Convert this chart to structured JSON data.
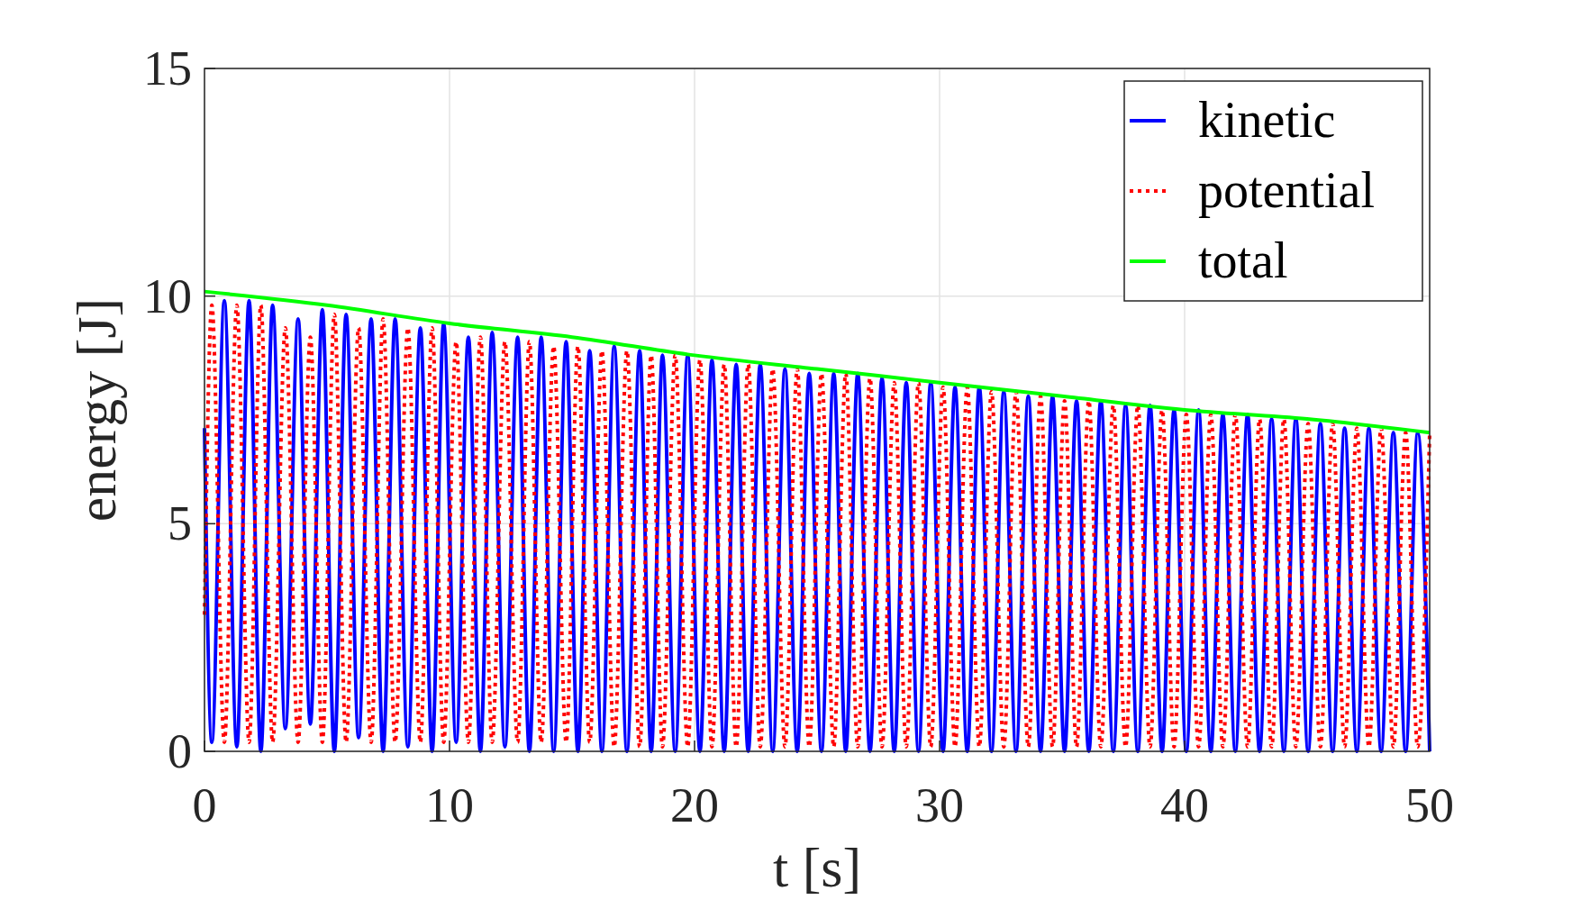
{
  "chart_data": {
    "type": "line",
    "xlabel": "t [s]",
    "ylabel": "energy [J]",
    "xlim": [
      0,
      50
    ],
    "ylim": [
      0,
      15
    ],
    "xticks": [
      0,
      10,
      20,
      30,
      40,
      50
    ],
    "yticks": [
      0,
      5,
      10,
      15
    ],
    "grid": true,
    "legend": "top right",
    "series": [
      {
        "name": "kinetic",
        "color": "#0000ff",
        "line_style": "solid",
        "x": [
          0,
          0.3,
          0.81,
          1.32,
          1.82,
          2.3,
          2.78,
          3.3,
          3.82,
          4.32,
          4.81,
          5.3,
          5.78,
          6.29,
          6.8,
          7.29,
          7.78,
          8.3,
          8.81,
          9.29,
          9.76,
          10.27,
          10.77,
          11.26,
          11.74,
          12.26,
          12.78,
          13.26,
          13.74,
          14.25,
          14.76,
          15.24,
          15.72,
          16.22,
          16.72,
          17.24,
          17.76,
          18.23,
          18.69,
          19.21,
          19.72,
          20.22,
          20.71,
          21.21,
          21.7,
          22.19,
          22.68,
          23.19,
          23.69,
          24.19,
          24.68,
          25.18,
          25.68,
          26.17,
          26.66,
          27.16,
          27.65,
          28.15,
          28.64,
          29.14,
          29.64,
          30.14,
          30.63,
          31.13,
          31.62,
          32.12,
          32.62,
          33.12,
          33.62,
          34.12,
          34.61,
          35.1,
          35.59,
          36.09,
          36.58,
          37.09,
          37.59,
          38.09,
          38.59,
          39.08,
          39.57,
          40.07,
          40.57,
          41.07,
          41.56,
          42.07,
          42.57,
          43.06,
          43.55,
          44.05,
          44.54,
          45.04,
          45.54,
          46.04,
          46.53,
          47.03,
          47.52,
          48.02,
          48.52,
          49.02,
          49.51,
          50
        ],
        "values": [
          7.1,
          0.2,
          9.9,
          0.1,
          9.9,
          0,
          9.8,
          0.5,
          9.5,
          0.6,
          9.7,
          0,
          9.6,
          0.3,
          9.5,
          0,
          9.5,
          0.1,
          9.3,
          0,
          9.4,
          0.2,
          9.1,
          0,
          9.2,
          0.1,
          9.1,
          0,
          9.1,
          0,
          9.0,
          0,
          8.8,
          0,
          8.9,
          0,
          8.8,
          0,
          8.7,
          0,
          8.7,
          0,
          8.6,
          0,
          8.5,
          0,
          8.5,
          0,
          8.4,
          0,
          8.3,
          0,
          8.3,
          0,
          8.3,
          0,
          8.2,
          0,
          8.1,
          0,
          8.1,
          0,
          8.0,
          0,
          8.0,
          0,
          7.9,
          0,
          7.8,
          0,
          7.8,
          0,
          7.7,
          0,
          7.7,
          0,
          7.6,
          0,
          7.6,
          0,
          7.5,
          0,
          7.5,
          0,
          7.4,
          0,
          7.4,
          0,
          7.3,
          0,
          7.3,
          0,
          7.2,
          0,
          7.1,
          0,
          7.1,
          0,
          7.0,
          0,
          7.0,
          0
        ]
      },
      {
        "name": "potential",
        "color": "#ff0000",
        "line_style": "dotted",
        "x": [
          0,
          0.3,
          0.81,
          1.32,
          1.82,
          2.3,
          2.78,
          3.3,
          3.82,
          4.32,
          4.81,
          5.3,
          5.78,
          6.29,
          6.8,
          7.29,
          7.78,
          8.3,
          8.81,
          9.29,
          9.76,
          10.27,
          10.77,
          11.26,
          11.74,
          12.26,
          12.78,
          13.26,
          13.74,
          14.25,
          14.76,
          15.24,
          15.72,
          16.22,
          16.72,
          17.24,
          17.76,
          18.23,
          18.69,
          19.21,
          19.72,
          20.22,
          20.71,
          21.21,
          21.7,
          22.19,
          22.68,
          23.19,
          23.69,
          24.19,
          24.68,
          25.18,
          25.68,
          26.17,
          26.66,
          27.16,
          27.65,
          28.15,
          28.64,
          29.14,
          29.64,
          30.14,
          30.63,
          31.13,
          31.62,
          32.12,
          32.62,
          33.12,
          33.62,
          34.12,
          34.61,
          35.1,
          35.59,
          36.09,
          36.58,
          37.09,
          37.59,
          38.09,
          38.59,
          39.08,
          39.57,
          40.07,
          40.57,
          41.07,
          41.56,
          42.07,
          42.57,
          43.06,
          43.55,
          44.05,
          44.54,
          45.04,
          45.54,
          46.04,
          46.53,
          47.03,
          47.52,
          48.02,
          48.52,
          49.02,
          49.51,
          50
        ],
        "values": [
          3.0,
          9.8,
          0.2,
          9.8,
          0.2,
          9.8,
          0.2,
          9.3,
          0.2,
          9.1,
          0.2,
          9.6,
          0.2,
          9.3,
          0.2,
          9.5,
          0.2,
          9.3,
          0.2,
          9.3,
          0.2,
          9.0,
          0.2,
          9.1,
          0.2,
          9.0,
          0.2,
          9.0,
          0.2,
          8.9,
          0.2,
          8.9,
          0.2,
          8.8,
          0.1,
          8.8,
          0.1,
          8.7,
          0.1,
          8.7,
          0.1,
          8.6,
          0.1,
          8.5,
          0.1,
          8.5,
          0.1,
          8.4,
          0.1,
          8.4,
          0.1,
          8.3,
          0.1,
          8.3,
          0.1,
          8.2,
          0.1,
          8.1,
          0.1,
          8.1,
          0.1,
          8.0,
          0.1,
          8.0,
          0.1,
          7.9,
          0.1,
          7.9,
          0.1,
          7.8,
          0.1,
          7.7,
          0.1,
          7.7,
          0.1,
          7.6,
          0.1,
          7.6,
          0.1,
          7.5,
          0.1,
          7.4,
          0.1,
          7.4,
          0.1,
          7.4,
          0.1,
          7.3,
          0.1,
          7.3,
          0.1,
          7.2,
          0.1,
          7.2,
          0.1,
          7.1,
          0.1,
          7.1,
          0.1,
          7.0,
          0.1,
          7.0
        ]
      },
      {
        "name": "total",
        "color": "#00ff00",
        "line_style": "solid",
        "x": [
          0,
          5,
          10,
          15,
          20,
          25,
          30,
          35,
          40,
          45,
          50
        ],
        "values": [
          10.1,
          9.8,
          9.4,
          9.1,
          8.7,
          8.4,
          8.1,
          7.8,
          7.5,
          7.3,
          7.0
        ]
      }
    ]
  }
}
